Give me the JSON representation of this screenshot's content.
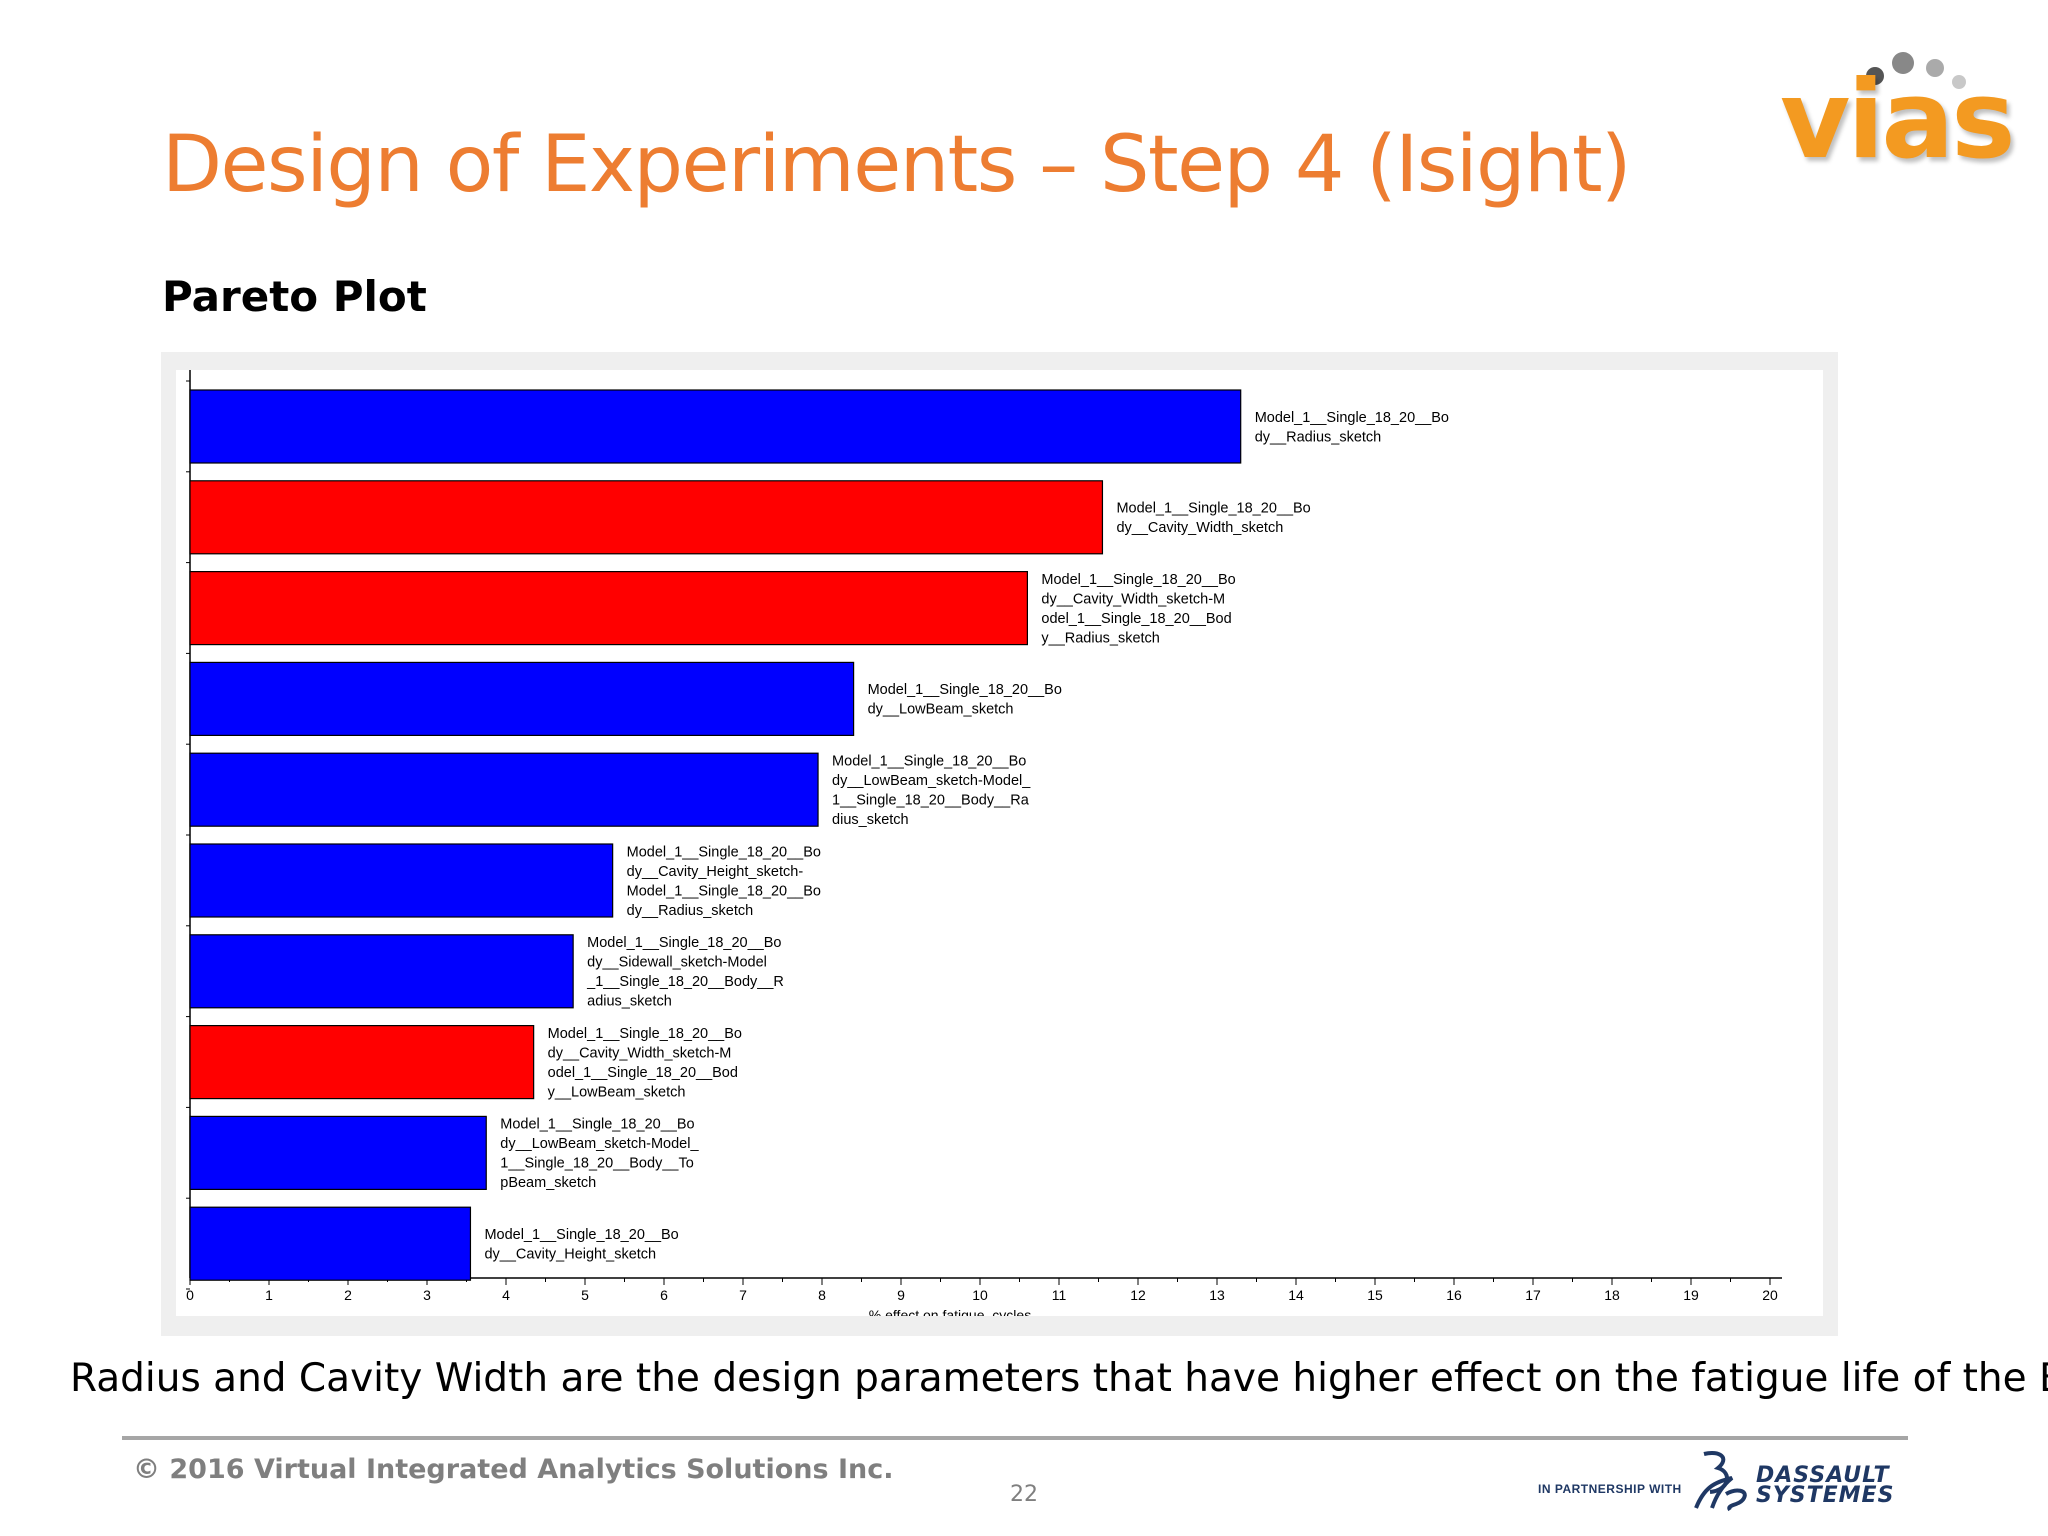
{
  "slide": {
    "title": "Design of Experiments – Step 4 (Isight)",
    "subtitle": "Pareto Plot",
    "conclusion": "Radius and Cavity Width are the design parameters that have higher effect on the fatigue life of the BOP",
    "copyright": "© 2016 Virtual Integrated Analytics Solutions Inc.",
    "page_number": "22",
    "logo_text": "vias",
    "partner_text": "IN PARTNERSHIP WITH",
    "partner_name_line1": "DASSAULT",
    "partner_name_line2": "SYSTEMES"
  },
  "colors": {
    "title": "#ED7D31",
    "positive_effect": "#0000FF",
    "negative_effect": "#FF0000",
    "logo": "#F39A21"
  },
  "chart_data": {
    "type": "bar",
    "orientation": "horizontal",
    "xlabel": "% effect on fatigue_cycles",
    "xlim": [
      0,
      20
    ],
    "xticks": [
      0,
      1,
      2,
      3,
      4,
      5,
      6,
      7,
      8,
      9,
      10,
      11,
      12,
      13,
      14,
      15,
      16,
      17,
      18,
      19,
      20
    ],
    "grid": false,
    "bars": [
      {
        "label": [
          "Model_1__Single_18_20__Bo",
          "dy__Radius_sketch"
        ],
        "value": 13.3,
        "color": "#0000FF"
      },
      {
        "label": [
          "Model_1__Single_18_20__Bo",
          "dy__Cavity_Width_sketch"
        ],
        "value": 11.55,
        "color": "#FF0000"
      },
      {
        "label": [
          "Model_1__Single_18_20__Bo",
          "dy__Cavity_Width_sketch-M",
          "odel_1__Single_18_20__Bod",
          "y__Radius_sketch"
        ],
        "value": 10.6,
        "color": "#FF0000"
      },
      {
        "label": [
          "Model_1__Single_18_20__Bo",
          "dy__LowBeam_sketch"
        ],
        "value": 8.4,
        "color": "#0000FF"
      },
      {
        "label": [
          "Model_1__Single_18_20__Bo",
          "dy__LowBeam_sketch-Model_",
          "1__Single_18_20__Body__Ra",
          "dius_sketch"
        ],
        "value": 7.95,
        "color": "#0000FF"
      },
      {
        "label": [
          "Model_1__Single_18_20__Bo",
          "dy__Cavity_Height_sketch-",
          "Model_1__Single_18_20__Bo",
          "dy__Radius_sketch"
        ],
        "value": 5.35,
        "color": "#0000FF"
      },
      {
        "label": [
          "Model_1__Single_18_20__Bo",
          "dy__Sidewall_sketch-Model",
          "_1__Single_18_20__Body__R",
          "adius_sketch"
        ],
        "value": 4.85,
        "color": "#0000FF"
      },
      {
        "label": [
          "Model_1__Single_18_20__Bo",
          "dy__Cavity_Width_sketch-M",
          "odel_1__Single_18_20__Bod",
          "y__LowBeam_sketch"
        ],
        "value": 4.35,
        "color": "#FF0000"
      },
      {
        "label": [
          "Model_1__Single_18_20__Bo",
          "dy__LowBeam_sketch-Model_",
          "1__Single_18_20__Body__To",
          "pBeam_sketch"
        ],
        "value": 3.75,
        "color": "#0000FF"
      },
      {
        "label": [
          "Model_1__Single_18_20__Bo",
          "dy__Cavity_Height_sketch"
        ],
        "value": 3.55,
        "color": "#0000FF"
      }
    ]
  }
}
